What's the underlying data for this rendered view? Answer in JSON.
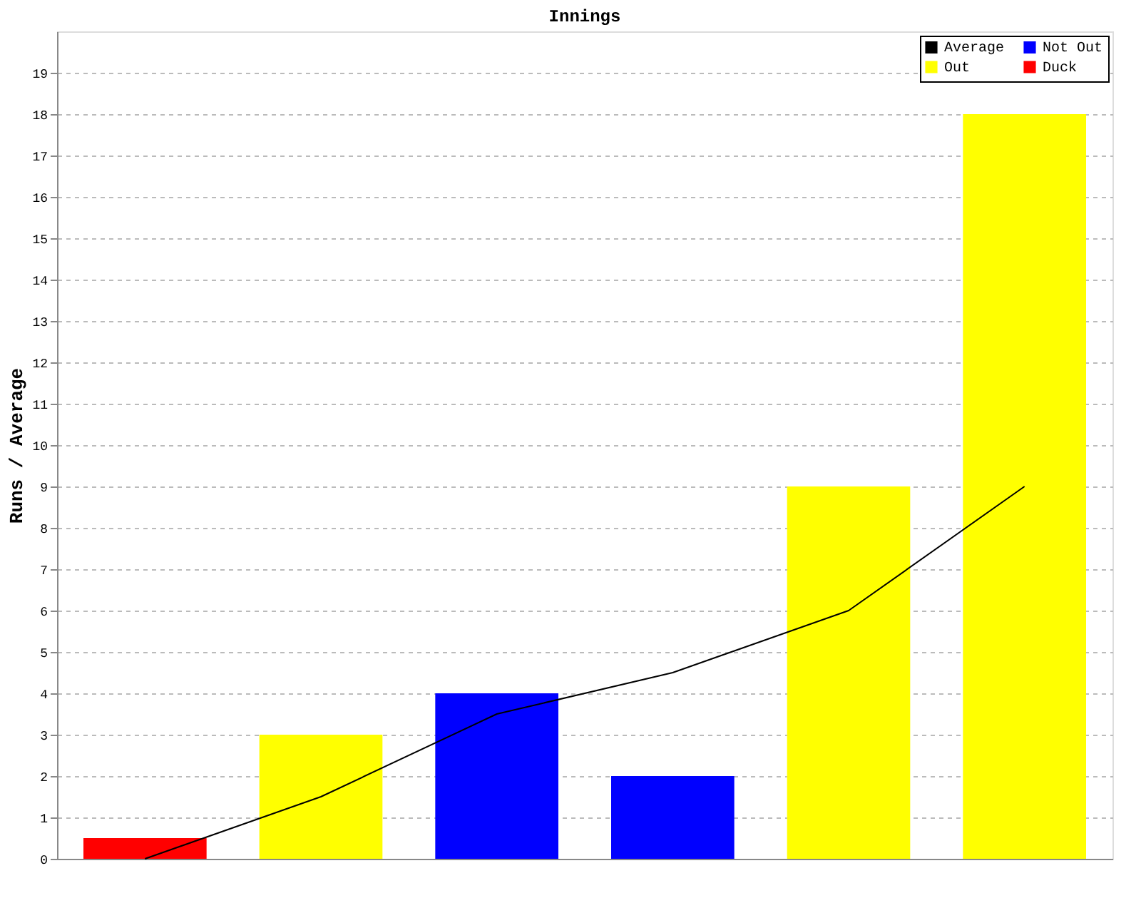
{
  "chart_data": {
    "type": "bar",
    "title": "Innings",
    "ylabel": "Runs / Average",
    "categories": [
      null,
      null,
      null,
      null,
      null,
      null
    ],
    "series": [
      {
        "name": "Average",
        "type": "line",
        "color": "#000000",
        "values": [
          0,
          1.5,
          3.5,
          4.5,
          6,
          9
        ]
      },
      {
        "name": "Out",
        "color": "#ffff00",
        "values": [
          null,
          3,
          null,
          null,
          9,
          18
        ]
      },
      {
        "name": "Not Out",
        "color": "#0000ff",
        "values": [
          null,
          null,
          4,
          2,
          null,
          null
        ]
      },
      {
        "name": "Duck",
        "color": "#ff0000",
        "values": [
          0.5,
          null,
          null,
          null,
          null,
          null
        ]
      }
    ],
    "ylim": [
      0,
      20
    ],
    "yticks": [
      0,
      1,
      2,
      3,
      4,
      5,
      6,
      7,
      8,
      9,
      10,
      11,
      12,
      13,
      14,
      15,
      16,
      17,
      18,
      19
    ],
    "grid": "y",
    "legend": "top right",
    "tick_labels": "y"
  }
}
